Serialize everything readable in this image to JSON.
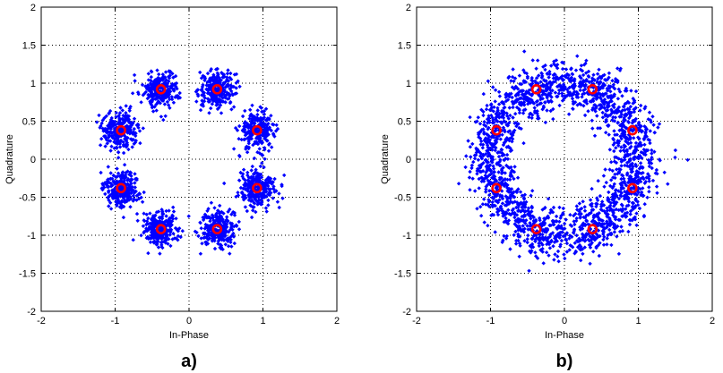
{
  "chart_data": [
    {
      "type": "scatter",
      "panel_label": "a)",
      "xlabel": "In-Phase",
      "ylabel": "Quadrature",
      "xlim": [
        -2,
        2
      ],
      "ylim": [
        -2,
        2
      ],
      "xticks": [
        "-2",
        "-1",
        "0",
        "1",
        "2"
      ],
      "yticks": [
        "2",
        "1.5",
        "1",
        "0.5",
        "0",
        "-0.5",
        "-1",
        "-1.5",
        "-2"
      ],
      "grid": true,
      "series": [
        {
          "role": "received-samples",
          "color": "#0000ff",
          "marker": "diamond",
          "distribution": {
            "clusters": [
              [
                0.92,
                0.38
              ],
              [
                0.38,
                0.92
              ],
              [
                -0.38,
                0.92
              ],
              [
                -0.92,
                0.38
              ],
              [
                -0.92,
                -0.38
              ],
              [
                -0.38,
                -0.92
              ],
              [
                0.38,
                -0.92
              ],
              [
                0.92,
                -0.38
              ]
            ],
            "spread": 0.12,
            "count_per_cluster": 260
          }
        },
        {
          "role": "ideal-constellation",
          "color": "#ff0000",
          "marker": "circle",
          "points": [
            [
              0.92,
              0.38
            ],
            [
              0.38,
              0.92
            ],
            [
              -0.38,
              0.92
            ],
            [
              -0.92,
              0.38
            ],
            [
              -0.92,
              -0.38
            ],
            [
              -0.38,
              -0.92
            ],
            [
              0.38,
              -0.92
            ],
            [
              0.92,
              -0.38
            ]
          ]
        }
      ]
    },
    {
      "type": "scatter",
      "panel_label": "b)",
      "xlabel": "In-Phase",
      "ylabel": "Quadrature",
      "xlim": [
        -2,
        2
      ],
      "ylim": [
        -2,
        2
      ],
      "xticks": [
        "-2",
        "-1",
        "0",
        "1",
        "2"
      ],
      "yticks": [
        "2",
        "1.5",
        "1",
        "0.5",
        "0",
        "-0.5",
        "-1",
        "-1.5",
        "-2"
      ],
      "grid": true,
      "series": [
        {
          "role": "received-samples",
          "color": "#0000ff",
          "marker": "diamond",
          "distribution": {
            "ring_radius": 1.0,
            "radial_spread": 0.16,
            "phase_spread": 0.3,
            "cluster_centers": [
              [
                0.92,
                0.38
              ],
              [
                0.38,
                0.92
              ],
              [
                -0.38,
                0.92
              ],
              [
                -0.92,
                0.38
              ],
              [
                -0.92,
                -0.38
              ],
              [
                -0.38,
                -0.92
              ],
              [
                0.38,
                -0.92
              ],
              [
                0.92,
                -0.38
              ]
            ],
            "count_per_cluster": 260
          }
        },
        {
          "role": "ideal-constellation",
          "color": "#ff0000",
          "marker": "circle",
          "points": [
            [
              0.92,
              0.38
            ],
            [
              0.38,
              0.92
            ],
            [
              -0.38,
              0.92
            ],
            [
              -0.92,
              0.38
            ],
            [
              -0.92,
              -0.38
            ],
            [
              -0.38,
              -0.92
            ],
            [
              0.38,
              -0.92
            ],
            [
              0.92,
              -0.38
            ]
          ]
        }
      ]
    }
  ]
}
